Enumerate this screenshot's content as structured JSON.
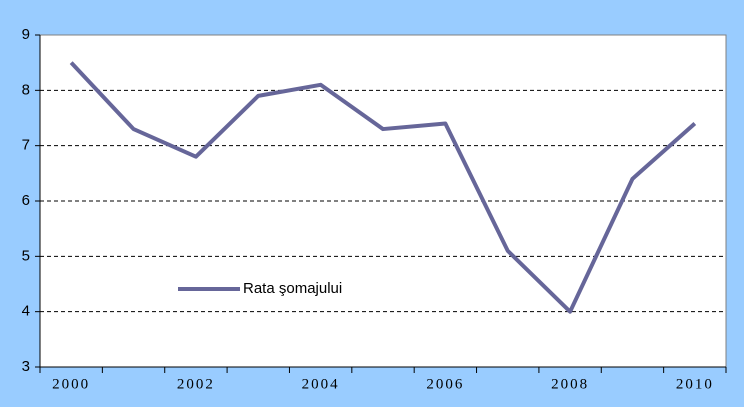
{
  "chart_data": {
    "type": "line",
    "categories": [
      "2000",
      null,
      "2002",
      null,
      "2004",
      null,
      "2006",
      null,
      "2008",
      null,
      "2010"
    ],
    "series": [
      {
        "name": "Rata şomajului",
        "color": "#666699",
        "values": [
          8.5,
          7.3,
          6.8,
          7.9,
          8.1,
          7.3,
          7.4,
          5.1,
          4.0,
          6.4,
          7.4
        ]
      }
    ],
    "ylim": [
      3,
      9
    ],
    "yticks": [
      3,
      4,
      5,
      6,
      7,
      8,
      9
    ],
    "grid": true
  }
}
